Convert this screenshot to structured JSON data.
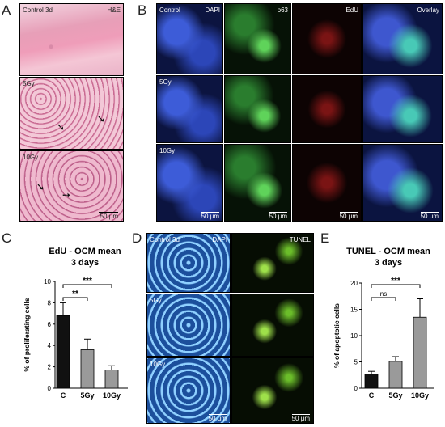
{
  "panel_letters": {
    "A": "A",
    "B": "B",
    "C": "C",
    "D": "D",
    "E": "E"
  },
  "panelA": {
    "stain": "H&E",
    "rows": [
      "Control 3d",
      "5Gy",
      "10Gy"
    ],
    "scale": "50 μm"
  },
  "panelB": {
    "row_labels": [
      "Control",
      "5Gy",
      "10Gy"
    ],
    "columns": [
      "DAPI",
      "p63",
      "EdU",
      "Overlay"
    ],
    "scale": "50 μm"
  },
  "panelD": {
    "row_labels": [
      "Control 3d",
      "5Gy",
      "10Gy"
    ],
    "columns": [
      "DAPI",
      "TUNEL"
    ],
    "scale": "50 μm"
  },
  "chart_data": [
    {
      "panel": "C",
      "type": "bar",
      "title": "EdU - OCM mean",
      "subtitle": "3 days",
      "ylabel": "% of proliferating cells",
      "xlabel": "",
      "categories": [
        "C",
        "5Gy",
        "10Gy"
      ],
      "values": [
        6.8,
        3.6,
        1.7
      ],
      "errors": [
        1.2,
        1.0,
        0.4
      ],
      "colors": [
        "#111111",
        "#9a9a9a",
        "#9a9a9a"
      ],
      "ylim": [
        0,
        10
      ],
      "yticks": [
        "0",
        "2",
        "4",
        "6",
        "8",
        "10"
      ],
      "significance": [
        {
          "from": "C",
          "to": "5Gy",
          "label": "**"
        },
        {
          "from": "C",
          "to": "10Gy",
          "label": "***"
        }
      ]
    },
    {
      "panel": "E",
      "type": "bar",
      "title": "TUNEL - OCM mean",
      "subtitle": "3 days",
      "ylabel": "% of apoptotic cells",
      "xlabel": "",
      "categories": [
        "C",
        "5Gy",
        "10Gy"
      ],
      "values": [
        2.7,
        5.1,
        13.5
      ],
      "errors": [
        0.5,
        0.9,
        3.5
      ],
      "colors": [
        "#111111",
        "#9a9a9a",
        "#9a9a9a"
      ],
      "ylim": [
        0,
        20
      ],
      "yticks": [
        "0",
        "5",
        "10",
        "15",
        "20"
      ],
      "significance": [
        {
          "from": "C",
          "to": "5Gy",
          "label": "ns"
        },
        {
          "from": "C",
          "to": "10Gy",
          "label": "***"
        }
      ]
    }
  ]
}
